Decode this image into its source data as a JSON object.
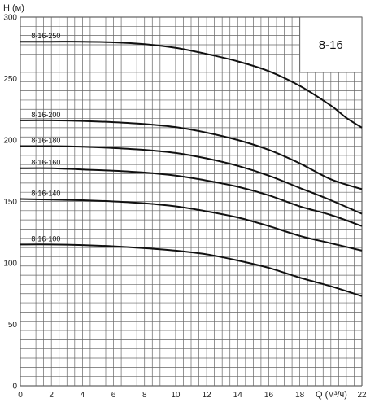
{
  "chart_data": {
    "type": "line",
    "model_label": "8-16",
    "ylabel": "H (м)",
    "xlabel": "Q (м³/ч)",
    "xlim": [
      0,
      22
    ],
    "ylim": [
      0,
      300
    ],
    "xticks": [
      "0",
      "2",
      "4",
      "6",
      "8",
      "10",
      "12",
      "14",
      "16",
      "18",
      "22"
    ],
    "yticks": [
      "0",
      "50",
      "100",
      "150",
      "200",
      "250",
      "300"
    ],
    "grid": true,
    "series": [
      {
        "name": "8-16-250",
        "x": [
          0,
          2,
          4,
          6,
          8,
          10,
          12,
          14,
          16,
          18,
          20,
          21,
          22
        ],
        "y": [
          280,
          280,
          280,
          279.5,
          278,
          275,
          270,
          264,
          256,
          244,
          228,
          218,
          210
        ]
      },
      {
        "name": "8-16-200",
        "x": [
          0,
          2,
          4,
          6,
          8,
          10,
          12,
          14,
          16,
          18,
          20,
          22
        ],
        "y": [
          216,
          216,
          215.5,
          214.5,
          213,
          210.5,
          206,
          200,
          192,
          181,
          168,
          160
        ]
      },
      {
        "name": "8-16-180",
        "x": [
          0,
          2,
          4,
          6,
          8,
          10,
          12,
          14,
          16,
          18,
          20,
          22
        ],
        "y": [
          195,
          195,
          194.5,
          193.5,
          192,
          189.5,
          185,
          179,
          171,
          161,
          151,
          140
        ]
      },
      {
        "name": "8-16-160",
        "x": [
          0,
          2,
          4,
          6,
          8,
          10,
          12,
          14,
          16,
          18,
          20,
          22
        ],
        "y": [
          177,
          177,
          176,
          175,
          173.5,
          171,
          167,
          162,
          155,
          146,
          139,
          130
        ]
      },
      {
        "name": "8-16-140",
        "x": [
          0,
          2,
          4,
          6,
          8,
          10,
          12,
          14,
          16,
          18,
          20,
          22
        ],
        "y": [
          152,
          151.5,
          151,
          150,
          148.5,
          146,
          142,
          137,
          130,
          122,
          116,
          110
        ]
      },
      {
        "name": "8-16-100",
        "x": [
          0,
          2,
          4,
          6,
          8,
          10,
          12,
          14,
          16,
          18,
          20,
          22
        ],
        "y": [
          115,
          115,
          114.5,
          113.5,
          112,
          110,
          107,
          102,
          96,
          88,
          81,
          73
        ]
      }
    ]
  }
}
